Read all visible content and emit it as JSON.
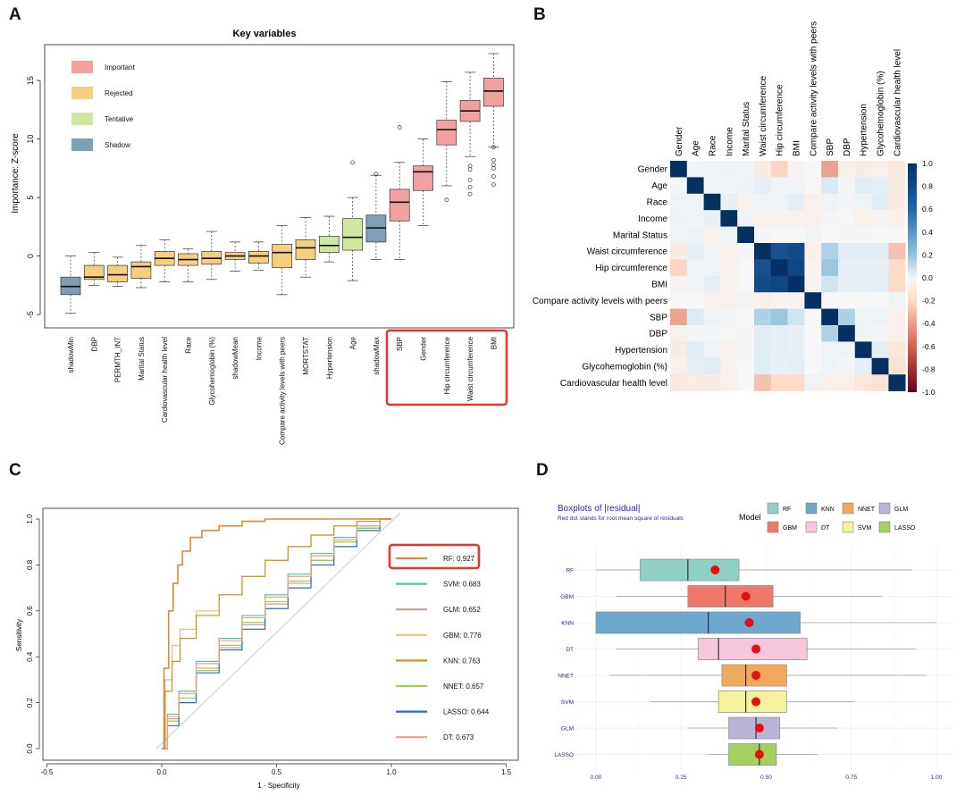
{
  "panels": {
    "A": {
      "label": "A",
      "title": "Key variables",
      "ylabel": "Importance: Z-score",
      "legend": [
        {
          "label": "Important",
          "color": "#f2a0a0"
        },
        {
          "label": "Rejected",
          "color": "#f6cf7e"
        },
        {
          "label": "Tentative",
          "color": "#cfe7a0"
        },
        {
          "label": "Shadow",
          "color": "#7f9fb6"
        }
      ],
      "highlight_color": "#e8342a"
    },
    "B": {
      "label": "B"
    },
    "C": {
      "label": "C",
      "xlabel": "1 - Specificity",
      "ylabel": "Sensitivity"
    },
    "D": {
      "label": "D",
      "title": "Boxplots of |residual|",
      "subtitle": "Red dot stands for root mean square of residuals",
      "legend_title": "Model"
    }
  },
  "chart_data": [
    {
      "type": "box",
      "panel": "A",
      "title": "Key variables",
      "ylabel": "Importance: Z-score",
      "ylim": [
        -5.5,
        18
      ],
      "yticks": [
        -5,
        0,
        5,
        10,
        15
      ],
      "grid": false,
      "legend_position": "top-left",
      "categories": [
        "shadowMin",
        "DBP",
        "PERMTH_INT",
        "Marital Status",
        "Cardiovascular health level",
        "Race",
        "Glycohemoglobin (%)",
        "shadowMean",
        "Income",
        "Compare activity levels with peers",
        "MORTSTAT",
        "Hypertension",
        "Age",
        "shadowMax",
        "SBP",
        "Gender",
        "Hip circumference",
        "Waist circumference",
        "BMI"
      ],
      "status": [
        "Shadow",
        "Rejected",
        "Rejected",
        "Rejected",
        "Rejected",
        "Rejected",
        "Rejected",
        "Rejected",
        "Rejected",
        "Rejected",
        "Rejected",
        "Tentative",
        "Tentative",
        "Shadow",
        "Important",
        "Important",
        "Important",
        "Important",
        "Important"
      ],
      "boxes": [
        {
          "wmin": -4.9,
          "q1": -3.3,
          "median": -2.6,
          "q3": -1.8,
          "wmax": 0.0,
          "outliers": []
        },
        {
          "wmin": -2.5,
          "q1": -2.0,
          "median": -1.8,
          "q3": -0.8,
          "wmax": 0.3,
          "outliers": []
        },
        {
          "wmin": -2.6,
          "q1": -2.2,
          "median": -1.6,
          "q3": -0.8,
          "wmax": -0.1,
          "outliers": []
        },
        {
          "wmin": -2.7,
          "q1": -1.9,
          "median": -0.9,
          "q3": -0.5,
          "wmax": 0.9,
          "outliers": []
        },
        {
          "wmin": -2.2,
          "q1": -0.8,
          "median": -0.2,
          "q3": 0.4,
          "wmax": 1.4,
          "outliers": []
        },
        {
          "wmin": -2.2,
          "q1": -0.8,
          "median": -0.3,
          "q3": 0.2,
          "wmax": 0.6,
          "outliers": []
        },
        {
          "wmin": -2.0,
          "q1": -0.7,
          "median": -0.2,
          "q3": 0.4,
          "wmax": 2.1,
          "outliers": []
        },
        {
          "wmin": -1.3,
          "q1": -0.3,
          "median": 0.0,
          "q3": 0.3,
          "wmax": 1.2,
          "outliers": []
        },
        {
          "wmin": -1.2,
          "q1": -0.6,
          "median": 0.0,
          "q3": 0.4,
          "wmax": 1.2,
          "outliers": []
        },
        {
          "wmin": -3.3,
          "q1": -1.0,
          "median": 0.3,
          "q3": 1.0,
          "wmax": 2.6,
          "outliers": []
        },
        {
          "wmin": -1.8,
          "q1": -0.3,
          "median": 0.7,
          "q3": 1.4,
          "wmax": 3.3,
          "outliers": []
        },
        {
          "wmin": -0.5,
          "q1": 0.3,
          "median": 0.9,
          "q3": 1.7,
          "wmax": 3.4,
          "outliers": []
        },
        {
          "wmin": -2.1,
          "q1": 0.5,
          "median": 1.6,
          "q3": 3.2,
          "wmax": 5.0,
          "outliers": [
            8.0
          ]
        },
        {
          "wmin": -0.3,
          "q1": 1.2,
          "median": 2.4,
          "q3": 3.5,
          "wmax": 6.9,
          "outliers": [
            7.0
          ]
        },
        {
          "wmin": -0.3,
          "q1": 3.0,
          "median": 4.6,
          "q3": 5.7,
          "wmax": 8.0,
          "outliers": [
            11.0
          ]
        },
        {
          "wmin": 2.6,
          "q1": 5.6,
          "median": 7.2,
          "q3": 7.7,
          "wmax": 10.0,
          "outliers": []
        },
        {
          "wmin": 6.0,
          "q1": 9.5,
          "median": 10.8,
          "q3": 11.6,
          "wmax": 14.9,
          "outliers": [
            4.8
          ]
        },
        {
          "wmin": 8.5,
          "q1": 11.5,
          "median": 12.4,
          "q3": 13.3,
          "wmax": 15.7,
          "outliers": [
            5.3,
            5.9,
            6.5,
            7.4,
            7.7
          ]
        },
        {
          "wmin": 9.3,
          "q1": 12.8,
          "median": 14.1,
          "q3": 15.2,
          "wmax": 17.3,
          "outliers": [
            6.1,
            6.8,
            7.5,
            7.8,
            8.2,
            9.3
          ]
        }
      ],
      "highlight_categories": [
        "SBP",
        "Gender",
        "Hip circumference",
        "Waist circumference",
        "BMI"
      ]
    },
    {
      "type": "heatmap",
      "panel": "B",
      "variables": [
        "Gender",
        "Age",
        "Race",
        "Income",
        "Marital Status",
        "Waist circumference",
        "Hip circumference",
        "BMI",
        "Compare activity levels with peers",
        "SBP",
        "DBP",
        "Hypertension",
        "Glycohemoglobin (%)",
        "Cardiovascular health level"
      ],
      "correlations": [
        [
          1.0,
          0.02,
          0.05,
          0.06,
          0.03,
          -0.08,
          -0.22,
          -0.03,
          0.0,
          -0.38,
          -0.05,
          -0.08,
          -0.05,
          -0.1
        ],
        [
          0.02,
          1.0,
          0.05,
          0.03,
          0.06,
          0.1,
          0.05,
          0.03,
          0.0,
          0.15,
          0.02,
          0.12,
          0.1,
          -0.08
        ],
        [
          0.05,
          0.05,
          1.0,
          0.08,
          -0.04,
          0.03,
          0.05,
          0.1,
          -0.05,
          0.05,
          0.02,
          0.05,
          0.12,
          -0.08
        ],
        [
          0.06,
          0.03,
          0.08,
          1.0,
          0.05,
          -0.05,
          -0.04,
          -0.04,
          -0.05,
          0.02,
          0.0,
          -0.05,
          -0.03,
          -0.05
        ],
        [
          0.03,
          0.06,
          -0.04,
          0.05,
          1.0,
          0.02,
          0.0,
          0.0,
          0.03,
          0.0,
          0.02,
          0.02,
          0.0,
          0.0
        ],
        [
          -0.08,
          0.1,
          0.03,
          -0.05,
          0.02,
          1.0,
          0.88,
          0.9,
          -0.05,
          0.3,
          0.12,
          0.12,
          0.12,
          -0.28
        ],
        [
          -0.22,
          0.05,
          0.05,
          -0.04,
          0.0,
          0.88,
          1.0,
          0.92,
          -0.03,
          0.35,
          0.1,
          0.1,
          0.08,
          -0.2
        ],
        [
          -0.03,
          0.03,
          0.1,
          -0.04,
          0.0,
          0.9,
          0.92,
          1.0,
          -0.03,
          0.2,
          0.08,
          0.08,
          0.1,
          -0.2
        ],
        [
          0.0,
          0.0,
          -0.05,
          -0.05,
          0.03,
          -0.05,
          -0.03,
          -0.03,
          1.0,
          0.0,
          0.0,
          0.0,
          0.0,
          0.05
        ],
        [
          -0.38,
          0.15,
          0.05,
          0.02,
          0.0,
          0.3,
          0.35,
          0.2,
          0.0,
          1.0,
          0.3,
          0.05,
          0.05,
          -0.05
        ],
        [
          -0.05,
          0.02,
          0.02,
          0.0,
          0.02,
          0.12,
          0.1,
          0.08,
          0.0,
          0.3,
          1.0,
          0.05,
          0.02,
          -0.05
        ],
        [
          -0.08,
          0.12,
          0.05,
          -0.05,
          0.02,
          0.12,
          0.1,
          0.08,
          0.0,
          0.05,
          0.05,
          1.0,
          0.1,
          -0.12
        ],
        [
          -0.05,
          0.1,
          0.12,
          -0.03,
          0.0,
          0.12,
          0.08,
          0.1,
          0.0,
          0.05,
          0.02,
          0.1,
          1.0,
          -0.15
        ],
        [
          -0.1,
          -0.08,
          -0.08,
          -0.05,
          0.0,
          -0.28,
          -0.2,
          -0.2,
          0.05,
          -0.05,
          -0.05,
          -0.12,
          -0.15,
          1.0
        ]
      ],
      "colorbar_ticks": [
        "1.0",
        "0.8",
        "0.6",
        "0.4",
        "0.2",
        "0.0",
        "-0.2",
        "-0.4",
        "-0.6",
        "-0.8",
        "-1.0"
      ],
      "color_range": [
        -1,
        1
      ]
    },
    {
      "type": "line",
      "panel": "C",
      "xlabel": "1 - Specificity",
      "ylabel": "Sensitivity",
      "xlim": [
        -0.5,
        1.5
      ],
      "ylim": [
        0,
        1
      ],
      "xticks": [
        "-0.5",
        "0.0",
        "0.5",
        "1.0",
        "1.5"
      ],
      "yticks": [
        "0.0",
        "0.2",
        "0.4",
        "0.6",
        "0.8",
        "1.0"
      ],
      "legend_position": "right",
      "series": [
        {
          "name": "RF: 0.927",
          "color": "#d98a3a",
          "x": [
            0,
            0.02,
            0.04,
            0.06,
            0.08,
            0.1,
            0.15,
            0.2,
            0.3,
            0.4,
            0.5,
            0.6,
            0.8,
            1.0
          ],
          "y": [
            0,
            0.35,
            0.6,
            0.72,
            0.8,
            0.86,
            0.92,
            0.95,
            0.97,
            0.99,
            1.0,
            1.0,
            1.0,
            1.0
          ]
        },
        {
          "name": "SVM: 0.683",
          "color": "#4cc9a0",
          "x": [
            0,
            0.05,
            0.1,
            0.2,
            0.3,
            0.4,
            0.5,
            0.6,
            0.7,
            0.8,
            0.9,
            1.0
          ],
          "y": [
            0,
            0.15,
            0.25,
            0.38,
            0.48,
            0.58,
            0.67,
            0.76,
            0.85,
            0.92,
            0.97,
            1.0
          ]
        },
        {
          "name": "GLM: 0.652",
          "color": "#c9a08a",
          "x": [
            0,
            0.05,
            0.1,
            0.2,
            0.3,
            0.4,
            0.5,
            0.6,
            0.7,
            0.8,
            0.9,
            1.0
          ],
          "y": [
            0,
            0.13,
            0.22,
            0.35,
            0.44,
            0.54,
            0.63,
            0.72,
            0.82,
            0.9,
            0.96,
            1.0
          ]
        },
        {
          "name": "GBM: 0.776",
          "color": "#e8c07a",
          "x": [
            0,
            0.03,
            0.06,
            0.1,
            0.2,
            0.3,
            0.4,
            0.5,
            0.6,
            0.7,
            0.8,
            0.9,
            1.0
          ],
          "y": [
            0,
            0.3,
            0.45,
            0.52,
            0.6,
            0.67,
            0.75,
            0.82,
            0.88,
            0.93,
            0.97,
            0.99,
            1.0
          ]
        },
        {
          "name": "KNN: 0.763",
          "color": "#c8961e",
          "x": [
            0,
            0.03,
            0.06,
            0.1,
            0.2,
            0.3,
            0.4,
            0.5,
            0.6,
            0.7,
            0.8,
            0.9,
            1.0
          ],
          "y": [
            0,
            0.25,
            0.38,
            0.48,
            0.58,
            0.67,
            0.75,
            0.82,
            0.88,
            0.93,
            0.97,
            0.99,
            1.0
          ]
        },
        {
          "name": "NNET: 0.657",
          "color": "#9ccf4a",
          "x": [
            0,
            0.05,
            0.1,
            0.2,
            0.3,
            0.4,
            0.5,
            0.6,
            0.7,
            0.8,
            0.9,
            1.0
          ],
          "y": [
            0,
            0.12,
            0.22,
            0.34,
            0.45,
            0.55,
            0.64,
            0.73,
            0.82,
            0.9,
            0.96,
            1.0
          ]
        },
        {
          "name": "LASSO: 0.644",
          "color": "#2a6fc0",
          "x": [
            0,
            0.05,
            0.1,
            0.2,
            0.3,
            0.4,
            0.5,
            0.6,
            0.7,
            0.8,
            0.9,
            1.0
          ],
          "y": [
            0,
            0.1,
            0.2,
            0.33,
            0.43,
            0.52,
            0.61,
            0.7,
            0.8,
            0.88,
            0.95,
            1.0
          ]
        },
        {
          "name": "DT: 0.673",
          "color": "#f0a080",
          "x": [
            0,
            0.05,
            0.1,
            0.2,
            0.3,
            0.4,
            0.5,
            0.6,
            0.7,
            0.8,
            0.9,
            1.0
          ],
          "y": [
            0,
            0.14,
            0.24,
            0.37,
            0.47,
            0.57,
            0.66,
            0.75,
            0.84,
            0.91,
            0.97,
            1.0
          ]
        }
      ],
      "highlight_series": "RF: 0.927"
    },
    {
      "type": "box",
      "panel": "D",
      "orientation": "horizontal",
      "title": "Boxplots of |residual|",
      "subtitle": "Red dot stands for root mean square of residuals",
      "xlim": [
        0,
        1
      ],
      "xticks": [
        "0.00",
        "0.25",
        "0.50",
        "0.75",
        "1.00"
      ],
      "legend_title": "Model",
      "legend_position": "top-right",
      "legend": [
        {
          "name": "RF",
          "color": "#8fd0c6"
        },
        {
          "name": "KNN",
          "color": "#6fa8cf"
        },
        {
          "name": "NNET",
          "color": "#f3a95c"
        },
        {
          "name": "GLM",
          "color": "#b9b3d6"
        },
        {
          "name": "GBM",
          "color": "#f0786a"
        },
        {
          "name": "DT",
          "color": "#f6c6dc"
        },
        {
          "name": "SVM",
          "color": "#f4f29a"
        },
        {
          "name": "LASSO",
          "color": "#a5cf5e"
        }
      ],
      "models": [
        {
          "name": "RF",
          "color": "#8fd0c6",
          "wmin": 0.0,
          "q1": 0.13,
          "median": 0.27,
          "q3": 0.42,
          "wmax": 0.93,
          "rmse": 0.35
        },
        {
          "name": "GBM",
          "color": "#f0786a",
          "wmin": 0.06,
          "q1": 0.27,
          "median": 0.38,
          "q3": 0.52,
          "wmax": 0.84,
          "rmse": 0.44
        },
        {
          "name": "KNN",
          "color": "#6fa8cf",
          "wmin": 0.0,
          "q1": 0.0,
          "median": 0.33,
          "q3": 0.6,
          "wmax": 1.0,
          "rmse": 0.45
        },
        {
          "name": "DT",
          "color": "#f6c6dc",
          "wmin": 0.06,
          "q1": 0.3,
          "median": 0.36,
          "q3": 0.62,
          "wmax": 0.94,
          "rmse": 0.47
        },
        {
          "name": "NNET",
          "color": "#f3a95c",
          "wmin": 0.04,
          "q1": 0.37,
          "median": 0.44,
          "q3": 0.56,
          "wmax": 0.97,
          "rmse": 0.47
        },
        {
          "name": "SVM",
          "color": "#f4f29a",
          "wmin": 0.16,
          "q1": 0.36,
          "median": 0.44,
          "q3": 0.56,
          "wmax": 0.76,
          "rmse": 0.47
        },
        {
          "name": "GLM",
          "color": "#b9b3d6",
          "wmin": 0.27,
          "q1": 0.39,
          "median": 0.47,
          "q3": 0.54,
          "wmax": 0.71,
          "rmse": 0.48
        },
        {
          "name": "LASSO",
          "color": "#a5cf5e",
          "wmin": 0.33,
          "q1": 0.39,
          "median": 0.48,
          "q3": 0.53,
          "wmax": 0.65,
          "rmse": 0.48
        }
      ]
    }
  ]
}
